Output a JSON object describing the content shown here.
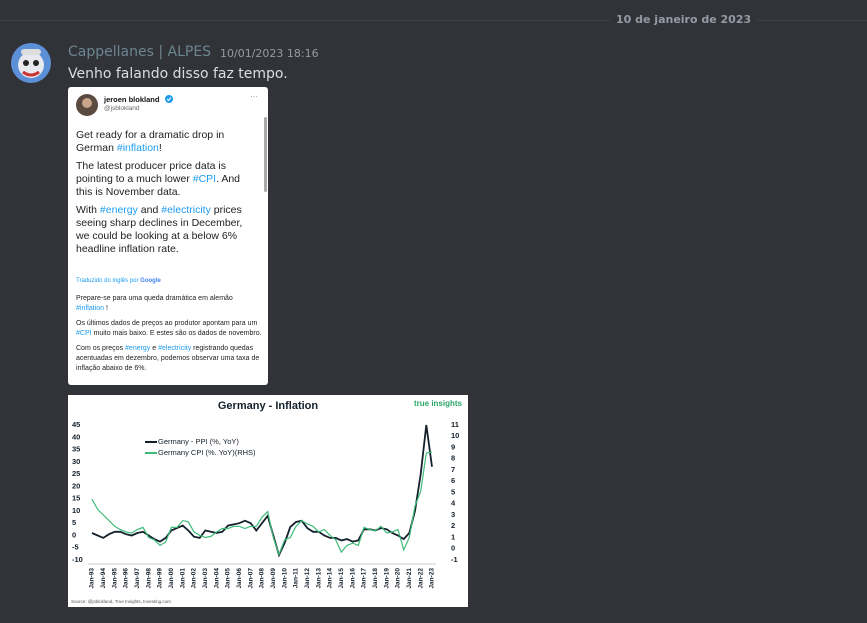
{
  "date_divider": "10 de janeiro de 2023",
  "message": {
    "author": "Cappellanes | ALPES",
    "timestamp": "10/01/2023 18:16",
    "text": "Venho falando disso faz tempo."
  },
  "tweet": {
    "name": "jeroen blokland",
    "handle": "@jsblokland",
    "menu": "···",
    "paragraphs": [
      [
        "Get ready for a dramatic drop in German ",
        "#inflation",
        "!"
      ],
      [
        "The latest producer price data is pointing to a much lower ",
        "#CPI",
        ". And this is November data."
      ],
      [
        "With ",
        "#energy",
        " and ",
        "#electricity",
        " prices seeing sharp declines in December, we could be looking at a below 6% headline inflation rate."
      ]
    ],
    "translated_by": "Traduzido do inglês por",
    "translator": "Google",
    "translation": [
      [
        "Prepare-se para uma queda dramática em alemão ",
        "#inflation",
        " !"
      ],
      [
        "Os últimos dados de preços ao produtor apontam para um ",
        "#CPI",
        " muito mais baixo. E estes são os dados de novembro."
      ],
      [
        "Com os preços ",
        "#energy",
        " e ",
        "#electricity",
        " registrando quedas acentuadas em dezembro, podemos observar uma taxa de inflação abaixo de 6%."
      ]
    ]
  },
  "chart_data": {
    "type": "line",
    "title": "Germany - Inflation",
    "brand": "true insights",
    "source": "Source: @jsblokland, True Insights, Investing.com",
    "categories": [
      "Jan-93",
      null,
      "Jan-94",
      null,
      "Jan-95",
      null,
      "Jan-96",
      null,
      "Jan-97",
      null,
      "Jan-98",
      null,
      "Jan-99",
      null,
      "Jan-00",
      null,
      "Jan-01",
      null,
      "Jan-02",
      null,
      "Jan-03",
      null,
      "Jan-04",
      null,
      "Jan-05",
      null,
      "Jan-06",
      null,
      "Jan-07",
      null,
      "Jan-08",
      null,
      "Jan-09",
      null,
      "Jan-10",
      null,
      "Jan-11",
      null,
      "Jan-12",
      null,
      "Jan-13",
      null,
      "Jan-14",
      null,
      "Jan-15",
      null,
      "Jan-16",
      null,
      "Jan-17",
      null,
      "Jan-18",
      null,
      "Jan-19",
      null,
      "Jan-20",
      null,
      "Jan-21",
      null,
      "Jan-22",
      null,
      "Jan-23"
    ],
    "series": [
      {
        "name": "Germany - PPI (%, YoY)",
        "color": "#14202b",
        "values": [
          1,
          0,
          -1,
          0.5,
          1.5,
          1.5,
          0.5,
          0,
          1,
          1.5,
          0,
          -1.5,
          -2.5,
          -1,
          2,
          3,
          4,
          2,
          -0.5,
          -1,
          2,
          1.5,
          1,
          1.5,
          4,
          4.5,
          5,
          6,
          5,
          2,
          5,
          8,
          0,
          -8,
          -3,
          3.5,
          5.5,
          6,
          3,
          1.5,
          1.5,
          0,
          -1,
          -1,
          -2,
          -1.5,
          -2.5,
          -2,
          2.5,
          2.5,
          2,
          3,
          2.5,
          1,
          0,
          -1.5,
          1,
          10,
          25,
          45,
          28
        ]
      },
      {
        "name": "Germany CPI (%. YoY)(RHS)",
        "color": "#3dbb7a",
        "axis": "y2",
        "values": [
          4.4,
          3.5,
          3,
          2.5,
          2,
          1.7,
          1.5,
          1.4,
          1.7,
          1.9,
          1,
          0.8,
          0.3,
          0.6,
          1.9,
          1.9,
          2.5,
          2.4,
          1.5,
          1.2,
          1,
          1.1,
          1.5,
          1.8,
          1.8,
          2,
          2,
          1.8,
          2,
          2,
          2.8,
          3.3,
          1,
          -0.5,
          0.8,
          1,
          2,
          2.5,
          2.2,
          2,
          1.5,
          1.7,
          1.2,
          0.8,
          -0.3,
          0.3,
          0.5,
          0.3,
          1.9,
          1.7,
          1.6,
          2,
          1.4,
          1.5,
          1.7,
          -0.1,
          1,
          3.8,
          5.1,
          8.5,
          8.6
        ]
      }
    ],
    "ylim": [
      -10,
      45
    ],
    "yticks": [
      -10,
      -5,
      0,
      5,
      10,
      15,
      20,
      25,
      30,
      35,
      40,
      45
    ],
    "y2lim": [
      -1,
      11
    ],
    "y2ticks": [
      -1,
      0,
      1,
      2,
      3,
      4,
      5,
      6,
      7,
      8,
      9,
      10,
      11
    ]
  }
}
